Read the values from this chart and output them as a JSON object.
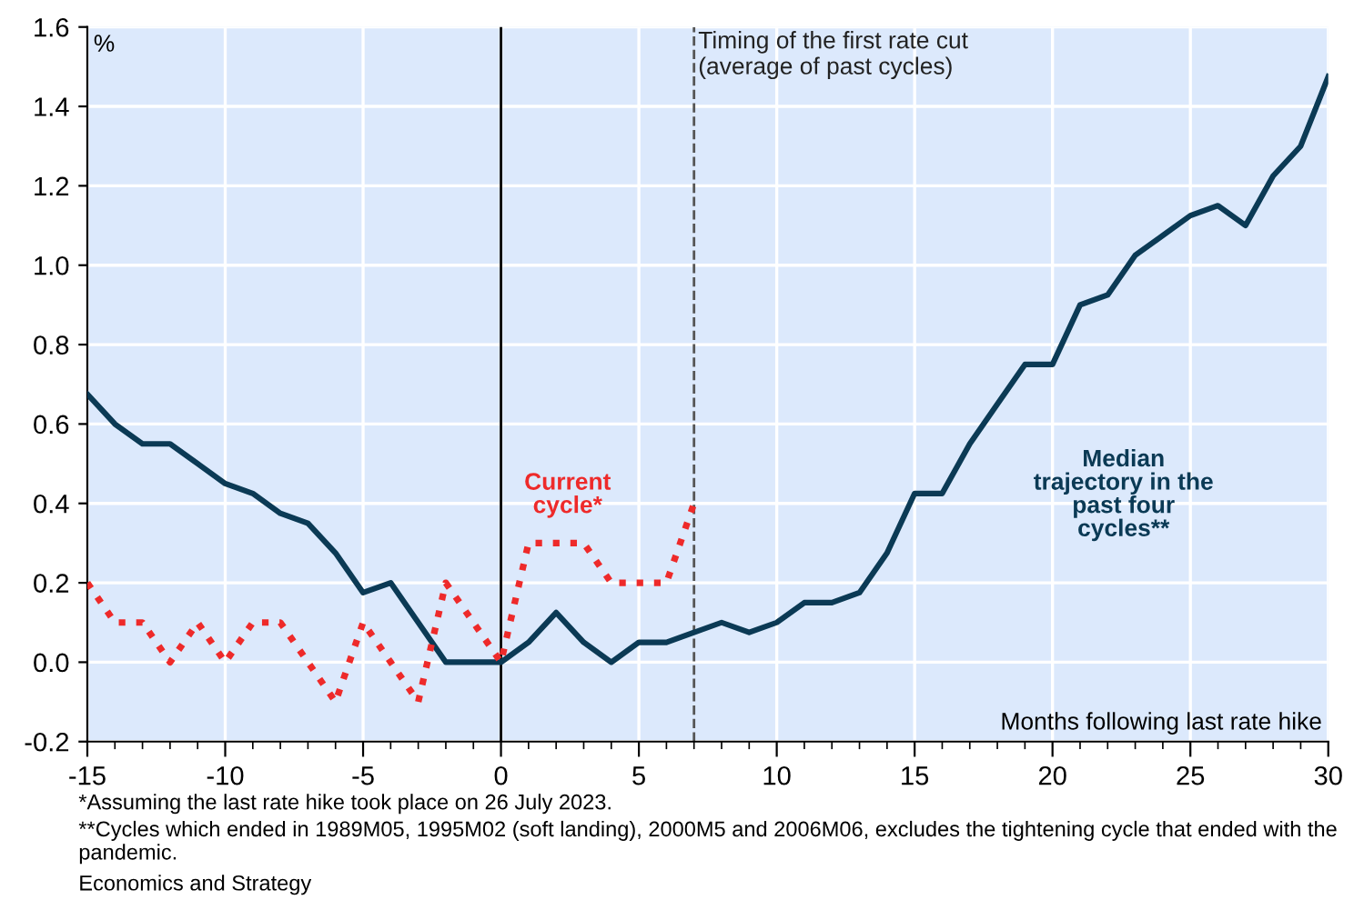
{
  "chart_data": {
    "type": "line",
    "ylabel": "%",
    "xlabel": "Months following last rate hike",
    "x": [
      -15,
      -14,
      -13,
      -12,
      -11,
      -10,
      -9,
      -8,
      -7,
      -6,
      -5,
      -4,
      -3,
      -2,
      -1,
      0,
      1,
      2,
      3,
      4,
      5,
      6,
      7,
      8,
      9,
      10,
      11,
      12,
      13,
      14,
      15,
      16,
      17,
      18,
      19,
      20,
      21,
      22,
      23,
      24,
      25,
      26,
      27,
      28,
      29,
      30
    ],
    "series": [
      {
        "name": "Median\ntrajectory in the\npast four\ncycles**",
        "color": "#0b3a55",
        "line_style": "solid",
        "values": [
          0.675,
          0.6,
          0.55,
          0.55,
          0.5,
          0.45,
          0.425,
          0.375,
          0.35,
          0.275,
          0.175,
          0.2,
          0.1,
          0.0,
          0.0,
          0.0,
          0.05,
          0.125,
          0.05,
          0.0,
          0.05,
          0.05,
          0.075,
          0.1,
          0.075,
          0.1,
          0.15,
          0.15,
          0.175,
          0.275,
          0.425,
          0.425,
          0.55,
          0.65,
          0.75,
          0.75,
          0.9,
          0.925,
          1.025,
          1.075,
          1.125,
          1.15,
          1.1,
          1.225,
          1.3,
          1.475
        ]
      },
      {
        "name": "Current\ncycle*",
        "color": "#ee2a2a",
        "line_style": "dotted",
        "x": [
          -15,
          -14,
          -13,
          -12,
          -11,
          -10,
          -9,
          -8,
          -7,
          -6,
          -5,
          -4,
          -3,
          -2,
          -1,
          0,
          1,
          2,
          3,
          4,
          5,
          6,
          7
        ],
        "values": [
          0.2,
          0.1,
          0.1,
          0.0,
          0.1,
          0.0,
          0.1,
          0.1,
          0.0,
          -0.1,
          0.1,
          0.0,
          -0.1,
          0.2,
          0.1,
          0.0,
          0.3,
          0.3,
          0.3,
          0.2,
          0.2,
          0.2,
          0.4
        ]
      }
    ],
    "xlim": [
      -15,
      30
    ],
    "xticks": [
      -15,
      -10,
      -5,
      0,
      5,
      10,
      15,
      20,
      25,
      30
    ],
    "ylim": [
      -0.2,
      1.6
    ],
    "yticks": [
      {
        "value": -0.2,
        "label": "-0.2"
      },
      {
        "value": 0,
        "label": "0.0"
      },
      {
        "value": 0.2,
        "label": "0.2"
      },
      {
        "value": 0.4,
        "label": "0.4"
      },
      {
        "value": 0.6,
        "label": "0.6"
      },
      {
        "value": 0.8,
        "label": "0.8"
      },
      {
        "value": 1.0,
        "label": "1.0"
      },
      {
        "value": 1.2,
        "label": "1.2"
      },
      {
        "value": 1.4,
        "label": "1.4"
      },
      {
        "value": 1.6,
        "label": "1.6"
      }
    ],
    "grid": true,
    "marker": "none",
    "ref_lines": [
      {
        "axis": "x",
        "value": 0,
        "label": null,
        "color": "#000000",
        "line_style": "solid"
      },
      {
        "axis": "x",
        "value": 7,
        "label": "Timing of the first rate cut\n(average of past cycles)",
        "color": "#555555",
        "line_style": "dashed"
      }
    ],
    "annotations": [
      "*Assuming the last rate hike took place on 26 July 2023.",
      "**Cycles which ended in 1989M05, 1995M02 (soft landing), 2000M5 and 2006M06, excludes the tightening cycle that ended with the pandemic.",
      "Economics and Strategy"
    ]
  }
}
